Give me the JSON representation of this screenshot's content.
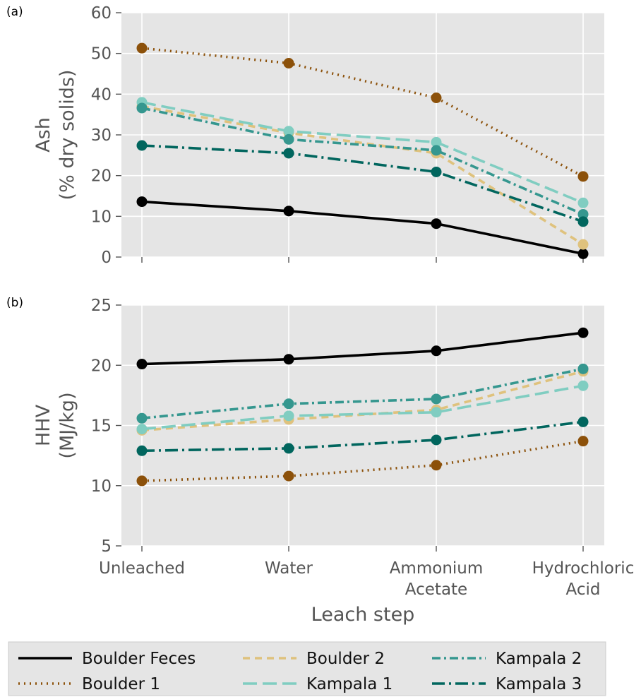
{
  "chart_data": [
    {
      "type": "line",
      "panel_label": "(a)",
      "ylabel_line1": "Ash",
      "ylabel_line2": "(% dry solids)",
      "xlabel": "",
      "categories": [
        "Unleached",
        "Water",
        "Ammonium Acetate",
        "Hydrochloric Acid"
      ],
      "ylim": [
        0,
        60
      ],
      "yticks": [
        0,
        10,
        20,
        30,
        40,
        50,
        60
      ],
      "grid": true,
      "series": [
        {
          "name": "Boulder Feces",
          "values": [
            13.6,
            11.3,
            8.2,
            0.8
          ],
          "color": "#000000",
          "dash": "solid"
        },
        {
          "name": "Boulder 1",
          "values": [
            51.3,
            47.6,
            39.1,
            19.8
          ],
          "color": "#8c510a",
          "dash": "dotted"
        },
        {
          "name": "Boulder 2",
          "values": [
            37.0,
            30.5,
            25.5,
            3.1
          ],
          "color": "#dfc27d",
          "dash": "dashed"
        },
        {
          "name": "Kampala 1",
          "values": [
            38.0,
            30.9,
            28.2,
            13.3
          ],
          "color": "#80cdc1",
          "dash": "longdash"
        },
        {
          "name": "Kampala 2",
          "values": [
            36.6,
            28.9,
            26.2,
            10.5
          ],
          "color": "#35978f",
          "dash": "dashdot"
        },
        {
          "name": "Kampala 3",
          "values": [
            27.4,
            25.5,
            20.9,
            8.7
          ],
          "color": "#01665e",
          "dash": "longdashdot"
        }
      ]
    },
    {
      "type": "line",
      "panel_label": "(b)",
      "ylabel_line1": "HHV",
      "ylabel_line2": "(MJ/kg)",
      "xlabel": "Leach step",
      "categories": [
        "Unleached",
        "Water",
        "Ammonium Acetate",
        "Hydrochloric Acid"
      ],
      "ylim": [
        5,
        25
      ],
      "yticks": [
        5,
        10,
        15,
        20,
        25
      ],
      "grid": true,
      "series": [
        {
          "name": "Boulder Feces",
          "values": [
            20.1,
            20.5,
            21.2,
            22.7
          ],
          "color": "#000000",
          "dash": "solid"
        },
        {
          "name": "Boulder 1",
          "values": [
            10.4,
            10.8,
            11.7,
            13.7
          ],
          "color": "#8c510a",
          "dash": "dotted"
        },
        {
          "name": "Boulder 2",
          "values": [
            14.6,
            15.5,
            16.3,
            19.5
          ],
          "color": "#dfc27d",
          "dash": "dashed"
        },
        {
          "name": "Kampala 1",
          "values": [
            14.7,
            15.8,
            16.1,
            18.3
          ],
          "color": "#80cdc1",
          "dash": "longdash"
        },
        {
          "name": "Kampala 2",
          "values": [
            15.6,
            16.8,
            17.2,
            19.7
          ],
          "color": "#35978f",
          "dash": "dashdot"
        },
        {
          "name": "Kampala 3",
          "values": [
            12.9,
            13.1,
            13.8,
            15.3
          ],
          "color": "#01665e",
          "dash": "longdashdot"
        }
      ]
    }
  ],
  "legend": {
    "placement": "bottom",
    "entries": [
      "Boulder Feces",
      "Boulder 2",
      "Kampala 2",
      "Boulder 1",
      "Kampala 1",
      "Kampala 3"
    ]
  },
  "category_labels": [
    [
      "Unleached"
    ],
    [
      "Water"
    ],
    [
      "Ammonium",
      "Acetate"
    ],
    [
      "Hydrochloric",
      "Acid"
    ]
  ]
}
